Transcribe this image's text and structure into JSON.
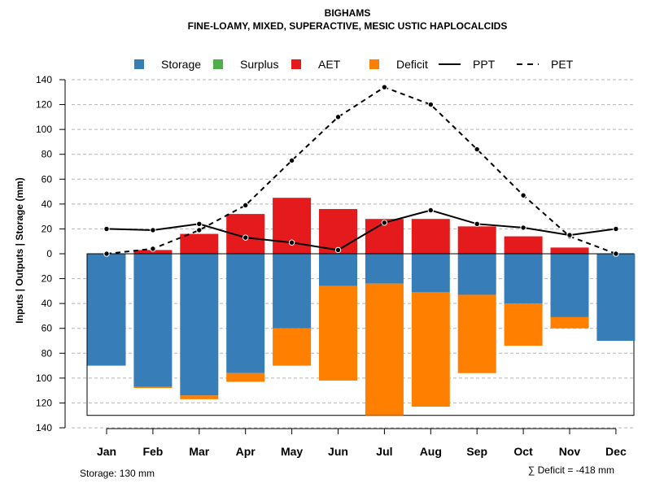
{
  "chart_data": {
    "type": "bar",
    "title": "BIGHAMS",
    "subtitle": "FINE-LOAMY, MIXED, SUPERACTIVE, MESIC USTIC HAPLOCALCIDS",
    "ylabel": "Inputs | Outputs | Storage    (mm)",
    "categories": [
      "Jan",
      "Feb",
      "Mar",
      "Apr",
      "May",
      "Jun",
      "Jul",
      "Aug",
      "Sep",
      "Oct",
      "Nov",
      "Dec"
    ],
    "ylim": [
      -140,
      140
    ],
    "yticks": [
      140,
      120,
      100,
      80,
      60,
      40,
      20,
      0,
      -20,
      -40,
      -60,
      -80,
      -100,
      -120,
      -140
    ],
    "ytick_labels": [
      "140",
      "120",
      "100",
      "80",
      "60",
      "40",
      "20",
      "0",
      "20",
      "40",
      "60",
      "80",
      "100",
      "120",
      "140"
    ],
    "legend": [
      {
        "label": "Storage",
        "kind": "box",
        "color": "#377EB8"
      },
      {
        "label": "Surplus",
        "kind": "box",
        "color": "#4DAF4A"
      },
      {
        "label": "AET",
        "kind": "box",
        "color": "#E41A1C"
      },
      {
        "label": "Deficit",
        "kind": "box",
        "color": "#FF7F00"
      },
      {
        "label": "PPT",
        "kind": "solid",
        "color": "#000000"
      },
      {
        "label": "PET",
        "kind": "dashed",
        "color": "#000000"
      }
    ],
    "series": [
      {
        "name": "AET",
        "color": "#E41A1C",
        "values": [
          0,
          3,
          16,
          32,
          45,
          36,
          28,
          28,
          22,
          14,
          5,
          0
        ]
      },
      {
        "name": "Storage",
        "color": "#377EB8",
        "values": [
          90,
          107,
          114,
          96,
          60,
          26,
          24,
          31,
          33,
          40,
          51,
          70
        ]
      },
      {
        "name": "Deficit",
        "color": "#FF7F00",
        "values": [
          0,
          1,
          3,
          7,
          30,
          76,
          106,
          92,
          63,
          34,
          9,
          0
        ]
      },
      {
        "name": "Surplus",
        "color": "#4DAF4A",
        "values": [
          0,
          0,
          0,
          0,
          0,
          0,
          0,
          0,
          0,
          0,
          0,
          0
        ]
      },
      {
        "name": "PPT",
        "color": "#000000",
        "values": [
          20,
          19,
          24,
          13,
          9,
          3,
          25,
          35,
          24,
          21,
          15,
          20
        ]
      },
      {
        "name": "PET",
        "color": "#000000",
        "values": [
          0,
          4,
          19,
          39,
          75,
          110,
          134,
          120,
          84,
          47,
          14,
          0
        ]
      }
    ],
    "storage_capacity": 130,
    "footnote_left": "Storage: 130 mm",
    "footnote_right": "∑ Deficit = -418 mm"
  }
}
